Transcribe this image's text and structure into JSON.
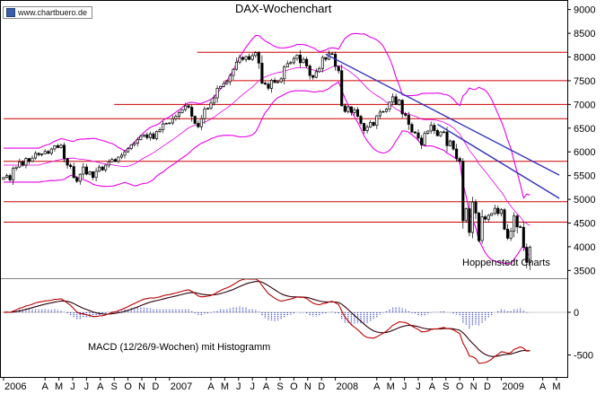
{
  "branding": {
    "logo_text": "www.chartbuero.de"
  },
  "header": {
    "title": "DAX-Wochenchart"
  },
  "watermark": "Hoppenstedt Charts",
  "colors": {
    "background": "#ffffff",
    "frame": "#000000",
    "candle": "#000000",
    "bollinger_band": "#e800e8",
    "horizontal_level": "#cc0000",
    "trendline": "#3333bb",
    "macd_line": "#bb0000",
    "macd_signal_line": "#2a0008",
    "histogram": "#2233bb",
    "axis_text": "#000000"
  },
  "chart_data": {
    "type": "candlestick",
    "title": "DAX-Wochenchart",
    "timeframe": "weekly",
    "x_range": {
      "start_label": "2006-01",
      "end_label": "2009-05",
      "months": 41
    },
    "y_axis_main": {
      "min": 3450,
      "max": 9050,
      "ticks": [
        "9000",
        "8500",
        "8000",
        "7500",
        "7000",
        "6500",
        "6000",
        "5500",
        "5000",
        "4500",
        "4000",
        "3500"
      ],
      "tick_values": [
        9000,
        8500,
        8000,
        7500,
        7000,
        6500,
        6000,
        5500,
        5000,
        4500,
        4000,
        3500
      ]
    },
    "y_axis_macd": {
      "ticks": [
        "0",
        "-500"
      ],
      "tick_values": [
        0,
        -500
      ]
    },
    "x_ticks": [
      {
        "label": "2006",
        "month": 0
      },
      {
        "label": "A",
        "month": 3
      },
      {
        "label": "M",
        "month": 4
      },
      {
        "label": "J",
        "month": 5
      },
      {
        "label": "J",
        "month": 6
      },
      {
        "label": "A",
        "month": 7
      },
      {
        "label": "S",
        "month": 8
      },
      {
        "label": "O",
        "month": 9
      },
      {
        "label": "N",
        "month": 10
      },
      {
        "label": "D",
        "month": 11
      },
      {
        "label": "2007",
        "month": 12
      },
      {
        "label": "A",
        "month": 15
      },
      {
        "label": "M",
        "month": 16
      },
      {
        "label": "J",
        "month": 17
      },
      {
        "label": "J",
        "month": 18
      },
      {
        "label": "A",
        "month": 19
      },
      {
        "label": "S",
        "month": 20
      },
      {
        "label": "O",
        "month": 21
      },
      {
        "label": "N",
        "month": 22
      },
      {
        "label": "D",
        "month": 23
      },
      {
        "label": "2008",
        "month": 24
      },
      {
        "label": "A",
        "month": 27
      },
      {
        "label": "M",
        "month": 28
      },
      {
        "label": "J",
        "month": 29
      },
      {
        "label": "J",
        "month": 30
      },
      {
        "label": "A",
        "month": 31
      },
      {
        "label": "S",
        "month": 32
      },
      {
        "label": "O",
        "month": 33
      },
      {
        "label": "N",
        "month": 34
      },
      {
        "label": "D",
        "month": 35
      },
      {
        "label": "2009",
        "month": 36
      },
      {
        "label": "A",
        "month": 39
      },
      {
        "label": "M",
        "month": 40
      }
    ],
    "weekly_closes": [
      5460,
      5500,
      5410,
      5650,
      5680,
      5790,
      5720,
      5860,
      5800,
      5870,
      5970,
      5940,
      5960,
      6010,
      5970,
      6060,
      6130,
      6090,
      6140,
      5860,
      5720,
      5690,
      5460,
      5380,
      5530,
      5680,
      5530,
      5580,
      5460,
      5590,
      5680,
      5620,
      5720,
      5790,
      5840,
      5800,
      5890,
      5930,
      6000,
      6070,
      6150,
      6180,
      6260,
      6330,
      6360,
      6300,
      6380,
      6280,
      6430,
      6470,
      6590,
      6600,
      6610,
      6700,
      6750,
      6830,
      6890,
      6970,
      6940,
      6750,
      6600,
      6530,
      6700,
      6900,
      6920,
      7030,
      7140,
      7340,
      7380,
      7440,
      7480,
      7610,
      7740,
      7890,
      7990,
      7950,
      8010,
      7950,
      8030,
      8090,
      7870,
      7450,
      7430,
      7340,
      7510,
      7460,
      7480,
      7540,
      7790,
      7860,
      7880,
      7970,
      8040,
      7880,
      7950,
      7810,
      7610,
      7570,
      7690,
      7760,
      7990,
      7950,
      8070,
      8060,
      7800,
      7710,
      6970,
      6850,
      6950,
      6830,
      6890,
      6750,
      6600,
      6450,
      6520,
      6620,
      6560,
      6760,
      6840,
      6850,
      6900,
      7050,
      7160,
      7000,
      7090,
      6800,
      6770,
      6580,
      6420,
      6400,
      6290,
      6150,
      6390,
      6440,
      6560,
      6450,
      6340,
      6420,
      6420,
      6130,
      6230,
      6060,
      5860,
      5800,
      4550,
      4800,
      4300,
      4940,
      4710,
      4130,
      4630,
      4580,
      4660,
      4700,
      4810,
      4700,
      4780,
      4370,
      4180,
      4330,
      4650,
      4420,
      4410,
      3990,
      3670,
      3990
    ],
    "overlays": {
      "bollinger": {
        "period": 20,
        "stddev": 2
      },
      "horizontal_levels": [
        {
          "value": 8100,
          "from_month": 14
        },
        {
          "value": 7500,
          "from_month": 16
        },
        {
          "value": 7000,
          "from_month": 8
        },
        {
          "value": 6700,
          "from_month": 0
        },
        {
          "value": 5800,
          "from_month": 0
        },
        {
          "value": 4950,
          "from_month": 0
        },
        {
          "value": 4520,
          "from_month": 0
        }
      ],
      "trendlines": [
        {
          "from_month": 23.3,
          "from_value": 8060,
          "to_month": 40.2,
          "to_value": 5510
        },
        {
          "from_month": 31.4,
          "from_value": 6580,
          "to_month": 40.2,
          "to_value": 5020
        }
      ]
    },
    "indicator": {
      "label": "MACD (12/26/9-Wochen) mit Histogramm",
      "fast": 12,
      "slow": 26,
      "signal": 9
    }
  }
}
